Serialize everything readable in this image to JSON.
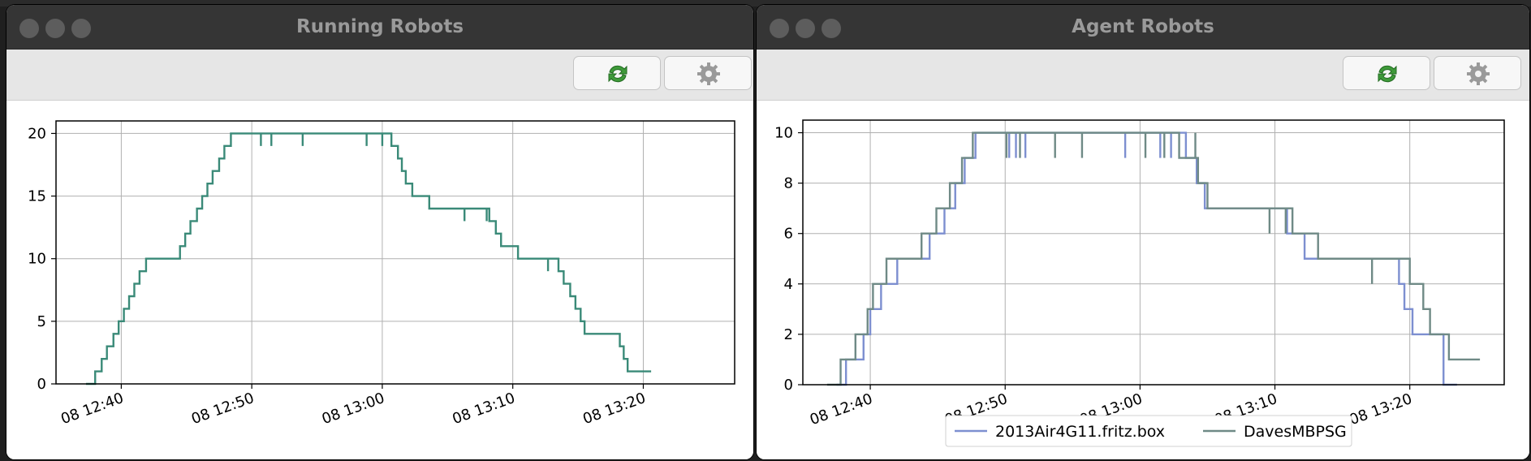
{
  "windows": [
    {
      "title": "Running Robots",
      "refresh_icon": "refresh-icon",
      "settings_icon": "gear-icon",
      "chart_data": {
        "type": "line",
        "title": "",
        "xlabel": "",
        "ylabel": "",
        "x_ticks": [
          "08 12:40",
          "08 12:50",
          "08 13:00",
          "08 13:10",
          "08 13:20"
        ],
        "y_ticks": [
          "0",
          "5",
          "10",
          "15",
          "20"
        ],
        "xlim": [
          "12:35",
          "13:27"
        ],
        "ylim": [
          0,
          21
        ],
        "grid": true,
        "legend": "none",
        "x_unit": "minutes after 12:00",
        "series": [
          {
            "color": "#3a8a78",
            "steps": [
              [
                37.3,
                0
              ],
              [
                38.0,
                1
              ],
              [
                38.5,
                2
              ],
              [
                38.9,
                3
              ],
              [
                39.4,
                4
              ],
              [
                39.8,
                5
              ],
              [
                40.2,
                6
              ],
              [
                40.6,
                7
              ],
              [
                41.0,
                8
              ],
              [
                41.4,
                9
              ],
              [
                41.9,
                10
              ],
              [
                44.5,
                11
              ],
              [
                44.9,
                12
              ],
              [
                45.3,
                13
              ],
              [
                45.8,
                14
              ],
              [
                46.2,
                15
              ],
              [
                46.6,
                16
              ],
              [
                47.0,
                17
              ],
              [
                47.5,
                18
              ],
              [
                47.9,
                19
              ],
              [
                48.4,
                20
              ],
              [
                60.7,
                19
              ],
              [
                61.2,
                18
              ],
              [
                61.5,
                17
              ],
              [
                61.8,
                16
              ],
              [
                62.3,
                15
              ],
              [
                63.6,
                14
              ],
              [
                68.2,
                13
              ],
              [
                68.7,
                12
              ],
              [
                69.1,
                11
              ],
              [
                70.4,
                10
              ],
              [
                73.5,
                9
              ],
              [
                73.9,
                8
              ],
              [
                74.4,
                7
              ],
              [
                74.8,
                6
              ],
              [
                75.2,
                5
              ],
              [
                75.5,
                4
              ],
              [
                78.2,
                3
              ],
              [
                78.5,
                2
              ],
              [
                78.8,
                1
              ],
              [
                80.6,
                1
              ]
            ],
            "dips": [
              [
                50.7,
                20,
                19
              ],
              [
                51.5,
                20,
                19
              ],
              [
                53.9,
                20,
                19
              ],
              [
                58.8,
                20,
                19
              ],
              [
                60.0,
                20,
                19
              ],
              [
                66.3,
                14,
                13
              ],
              [
                68.0,
                14,
                13
              ],
              [
                72.7,
                10,
                9
              ]
            ]
          }
        ]
      }
    },
    {
      "title": "Agent Robots",
      "refresh_icon": "refresh-icon",
      "settings_icon": "gear-icon",
      "chart_data": {
        "type": "line",
        "title": "",
        "xlabel": "",
        "ylabel": "",
        "x_ticks": [
          "08 12:40",
          "08 12:50",
          "08 13:00",
          "08 13:10",
          "08 13:20"
        ],
        "y_ticks": [
          "0",
          "2",
          "4",
          "6",
          "8",
          "10"
        ],
        "xlim": [
          "12:35",
          "13:27"
        ],
        "ylim": [
          0,
          10.5
        ],
        "grid": true,
        "legend": "bottom-center",
        "x_unit": "minutes after 12:00",
        "series": [
          {
            "name": "2013Air4G11.fritz.box",
            "color": "#7d8fd0",
            "steps": [
              [
                37.5,
                0
              ],
              [
                38.2,
                1
              ],
              [
                39.5,
                2
              ],
              [
                40.0,
                3
              ],
              [
                40.8,
                4
              ],
              [
                42.0,
                5
              ],
              [
                44.4,
                6
              ],
              [
                45.5,
                7
              ],
              [
                46.3,
                8
              ],
              [
                47.0,
                9
              ],
              [
                47.8,
                10
              ],
              [
                63.4,
                9
              ],
              [
                64.2,
                8
              ],
              [
                64.8,
                7
              ],
              [
                70.9,
                6
              ],
              [
                72.2,
                5
              ],
              [
                79.2,
                4
              ],
              [
                79.6,
                3
              ],
              [
                80.2,
                2
              ],
              [
                82.5,
                0
              ],
              [
                83.5,
                0
              ]
            ],
            "dips": [
              [
                50.3,
                10,
                9
              ],
              [
                50.8,
                10,
                9
              ],
              [
                51.5,
                10,
                9
              ],
              [
                58.9,
                10,
                9
              ],
              [
                61.5,
                10,
                9
              ],
              [
                62.3,
                10,
                9
              ]
            ]
          },
          {
            "name": "DavesMBPSG",
            "color": "#6f8a86",
            "steps": [
              [
                36.8,
                0
              ],
              [
                37.8,
                1
              ],
              [
                38.9,
                2
              ],
              [
                39.8,
                3
              ],
              [
                40.2,
                4
              ],
              [
                41.2,
                5
              ],
              [
                43.8,
                6
              ],
              [
                44.9,
                7
              ],
              [
                45.9,
                8
              ],
              [
                46.8,
                9
              ],
              [
                47.6,
                10
              ],
              [
                62.9,
                9
              ],
              [
                64.3,
                8
              ],
              [
                65.0,
                7
              ],
              [
                71.3,
                6
              ],
              [
                73.2,
                5
              ],
              [
                80.0,
                4
              ],
              [
                81.0,
                3
              ],
              [
                81.5,
                2
              ],
              [
                82.9,
                1
              ],
              [
                85.2,
                1
              ]
            ],
            "dips": [
              [
                50.1,
                10,
                9
              ],
              [
                51.1,
                10,
                9
              ],
              [
                53.7,
                10,
                9
              ],
              [
                55.7,
                10,
                9
              ],
              [
                60.4,
                10,
                9
              ],
              [
                61.8,
                10,
                9
              ],
              [
                64.1,
                10,
                9
              ],
              [
                69.6,
                7,
                6
              ],
              [
                70.8,
                7,
                6
              ],
              [
                77.2,
                5,
                4
              ]
            ]
          }
        ]
      }
    }
  ]
}
